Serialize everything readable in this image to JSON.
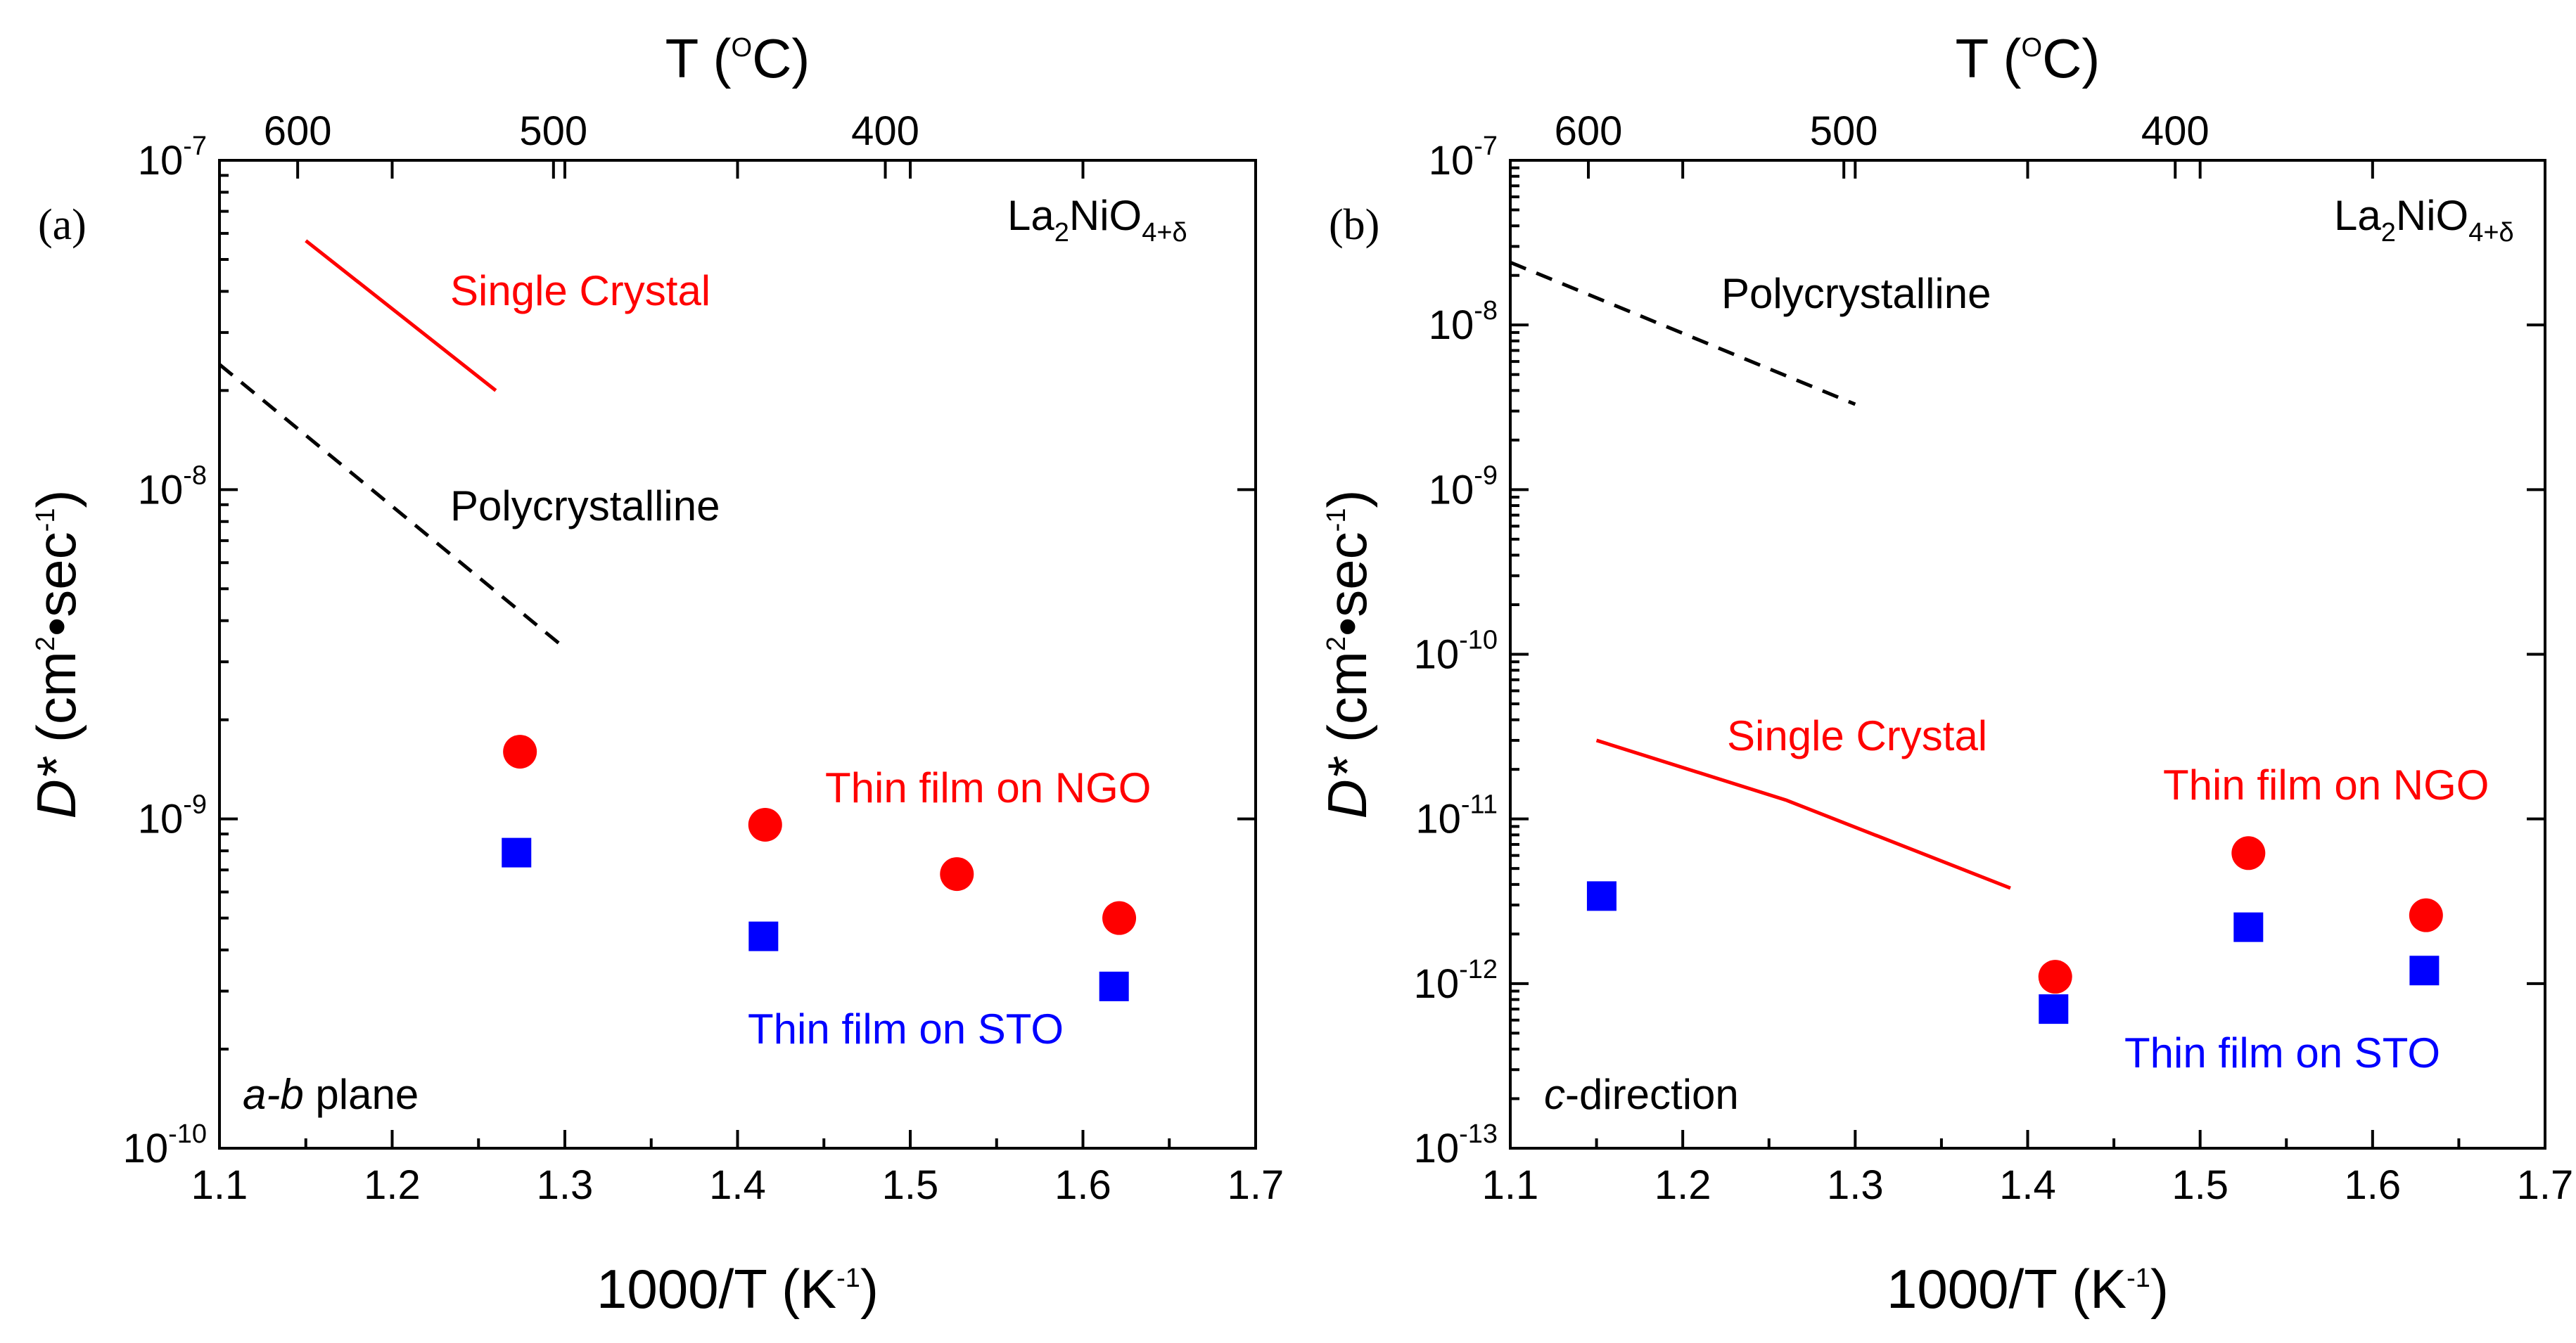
{
  "chart_data": [
    {
      "type": "scatter",
      "panel_label": "(a)",
      "xlabel": "1000/T (K",
      "xlabel_sup": "-1",
      "xlabel_end": ")",
      "ylabel_italic": "D*",
      "ylabel": " (cm",
      "ylabel_sup1": "2",
      "ylabel_mid": "•sec",
      "ylabel_sup2": "-1",
      "ylabel_end": ")",
      "top_xlabel": "T (",
      "top_xlabel_sup": "O",
      "top_xlabel_end": "C)",
      "xlim": [
        1.1,
        1.7
      ],
      "ylim_log10": [
        -10,
        -7
      ],
      "x_ticks": [
        "1.1",
        "1.2",
        "1.3",
        "1.4",
        "1.5",
        "1.6",
        "1.7"
      ],
      "y_ticks": [
        {
          "base": "10",
          "exp": "-10"
        },
        {
          "base": "10",
          "exp": "-9"
        },
        {
          "base": "10",
          "exp": "-8"
        },
        {
          "base": "10",
          "exp": "-7"
        }
      ],
      "top_ticks": [
        "600",
        "500",
        "400"
      ],
      "material": {
        "prefix": "La",
        "sub1": "2",
        "mid": "NiO",
        "sub2": "4+δ"
      },
      "orientation_italic": "a-b",
      "orientation": " plane",
      "series": [
        {
          "name": "Single Crystal",
          "kind": "line",
          "color": "#ff0000",
          "dash": "solid",
          "x": [
            1.15,
            1.26
          ],
          "y": [
            5.7e-08,
            2e-08
          ]
        },
        {
          "name": "Polycrystalline",
          "kind": "line",
          "color": "#000000",
          "dash": "dashed",
          "x": [
            1.1,
            1.3
          ],
          "y": [
            2.4e-08,
            3.3e-09
          ]
        },
        {
          "name": "Thin film on NGO",
          "kind": "circle",
          "color": "#ff0000",
          "x": [
            1.274,
            1.416,
            1.527,
            1.621
          ],
          "y": [
            1.6e-09,
            9.6e-10,
            6.8e-10,
            5e-10
          ]
        },
        {
          "name": "Thin film on STO",
          "kind": "square",
          "color": "#0000ff",
          "x": [
            1.272,
            1.415,
            1.618
          ],
          "y": [
            7.9e-10,
            4.4e-10,
            3.1e-10
          ]
        }
      ]
    },
    {
      "type": "scatter",
      "panel_label": "(b)",
      "xlabel": "1000/T (K",
      "xlabel_sup": "-1",
      "xlabel_end": ")",
      "ylabel_italic": "D*",
      "ylabel": " (cm",
      "ylabel_sup1": "2",
      "ylabel_mid": "•sec",
      "ylabel_sup2": "-1",
      "ylabel_end": ")",
      "top_xlabel": "T (",
      "top_xlabel_sup": "O",
      "top_xlabel_end": "C)",
      "xlim": [
        1.1,
        1.7
      ],
      "ylim_log10": [
        -13,
        -7
      ],
      "x_ticks": [
        "1.1",
        "1.2",
        "1.3",
        "1.4",
        "1.5",
        "1.6",
        "1.7"
      ],
      "y_ticks": [
        {
          "base": "10",
          "exp": "-13"
        },
        {
          "base": "10",
          "exp": "-12"
        },
        {
          "base": "10",
          "exp": "-11"
        },
        {
          "base": "10",
          "exp": "-10"
        },
        {
          "base": "10",
          "exp": "-9"
        },
        {
          "base": "10",
          "exp": "-8"
        },
        {
          "base": "10",
          "exp": "-7"
        }
      ],
      "top_ticks": [
        "600",
        "500",
        "400"
      ],
      "material": {
        "prefix": "La",
        "sub1": "2",
        "mid": "NiO",
        "sub2": "4+δ"
      },
      "orientation_italic": "c",
      "orientation": "-direction",
      "series": [
        {
          "name": "Polycrystalline",
          "kind": "line",
          "color": "#000000",
          "dash": "dashed",
          "x": [
            1.1,
            1.3
          ],
          "y": [
            2.4e-08,
            3.3e-09
          ]
        },
        {
          "name": "Single Crystal",
          "kind": "line",
          "color": "#ff0000",
          "dash": "solid",
          "x": [
            1.15,
            1.26,
            1.39
          ],
          "y": [
            3e-11,
            1.3e-11,
            3.8e-12
          ]
        },
        {
          "name": "Thin film on NGO",
          "kind": "circle",
          "color": "#ff0000",
          "x": [
            1.416,
            1.528,
            1.631
          ],
          "y": [
            1.1e-12,
            6.2e-12,
            2.6e-12
          ]
        },
        {
          "name": "Thin film on STO",
          "kind": "square",
          "color": "#0000ff",
          "x": [
            1.153,
            1.415,
            1.528,
            1.63
          ],
          "y": [
            3.4e-12,
            7e-13,
            2.2e-12,
            1.2e-12
          ]
        }
      ]
    }
  ]
}
